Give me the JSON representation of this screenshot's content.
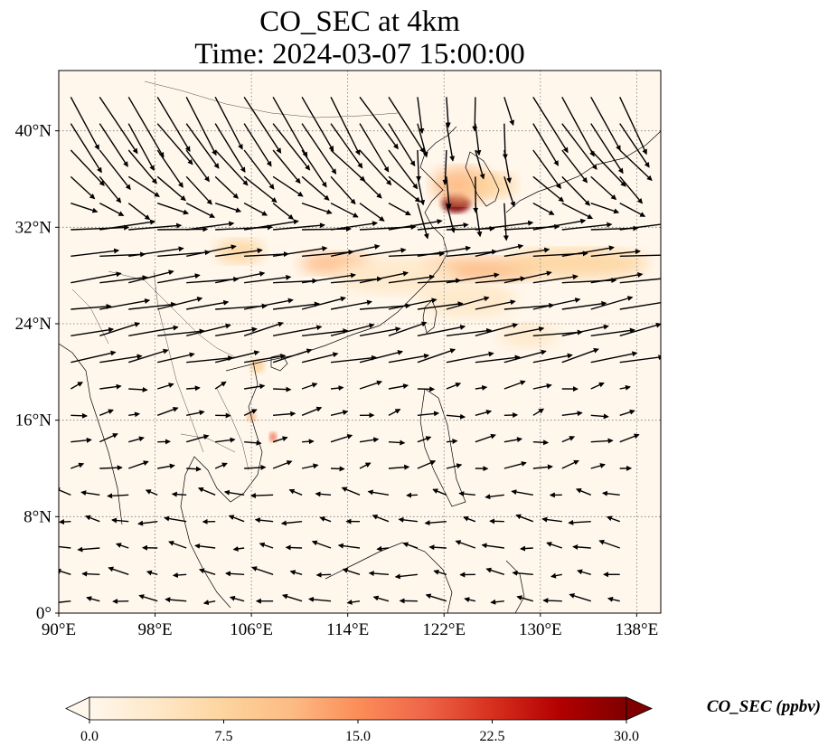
{
  "title": {
    "line1": "CO_SEC at 4km",
    "line2": "Time: 2024-03-07 15:00:00"
  },
  "axes": {
    "x_ticks": [
      {
        "value": 90,
        "label": "90°E"
      },
      {
        "value": 98,
        "label": "98°E"
      },
      {
        "value": 106,
        "label": "106°E"
      },
      {
        "value": 114,
        "label": "114°E"
      },
      {
        "value": 122,
        "label": "122°E"
      },
      {
        "value": 130,
        "label": "130°E"
      },
      {
        "value": 138,
        "label": "138°E"
      }
    ],
    "y_ticks": [
      {
        "value": 0,
        "label": "0°"
      },
      {
        "value": 8,
        "label": "8°N"
      },
      {
        "value": 16,
        "label": "16°N"
      },
      {
        "value": 24,
        "label": "24°N"
      },
      {
        "value": 32,
        "label": "32°N"
      },
      {
        "value": 40,
        "label": "40°N"
      }
    ],
    "lon_range": [
      90,
      140
    ],
    "lat_range": [
      0,
      45
    ],
    "gridlines": true
  },
  "colorbar": {
    "label": "CO_SEC (ppbv)",
    "min": 0,
    "max": 30,
    "colormap": "OrRd",
    "extend": "both",
    "ticks": [
      {
        "value": 0,
        "label": "0.0"
      },
      {
        "value": 7.5,
        "label": "7.5"
      },
      {
        "value": 15,
        "label": "15.0"
      },
      {
        "value": 22.5,
        "label": "22.5"
      },
      {
        "value": 30,
        "label": "30.0"
      }
    ],
    "colors": [
      "#fff7ec",
      "#fee8c8",
      "#fdd49e",
      "#fdbb84",
      "#fc8d59",
      "#ef6548",
      "#d7301f",
      "#b30000",
      "#7f0000"
    ]
  },
  "map": {
    "background_color": "#fff7ec",
    "plumes": [
      {
        "lon": 123,
        "lat": 34.0,
        "rx": 1.2,
        "ry": 0.8,
        "value": 30
      },
      {
        "lon": 123.5,
        "lat": 35.5,
        "rx": 2.5,
        "ry": 1.5,
        "value": 12
      },
      {
        "lon": 126,
        "lat": 35.5,
        "rx": 2.0,
        "ry": 1.0,
        "value": 6
      },
      {
        "lon": 113,
        "lat": 29.0,
        "rx": 3.0,
        "ry": 0.9,
        "value": 12
      },
      {
        "lon": 125,
        "lat": 28.5,
        "rx": 5.0,
        "ry": 1.0,
        "value": 12
      },
      {
        "lon": 133,
        "lat": 29.0,
        "rx": 6.0,
        "ry": 1.2,
        "value": 8
      },
      {
        "lon": 105,
        "lat": 30.0,
        "rx": 2.0,
        "ry": 1.0,
        "value": 6
      },
      {
        "lon": 118,
        "lat": 28.0,
        "rx": 5.0,
        "ry": 1.5,
        "value": 4
      },
      {
        "lon": 124,
        "lat": 26.0,
        "rx": 4.0,
        "ry": 1.5,
        "value": 5
      },
      {
        "lon": 106,
        "lat": 16.3,
        "rx": 0.4,
        "ry": 0.4,
        "value": 12
      },
      {
        "lon": 107.8,
        "lat": 14.6,
        "rx": 0.3,
        "ry": 0.4,
        "value": 20
      },
      {
        "lon": 106.5,
        "lat": 20.5,
        "rx": 0.6,
        "ry": 0.6,
        "value": 6
      },
      {
        "lon": 129,
        "lat": 23.0,
        "rx": 2.5,
        "ry": 1.0,
        "value": 3
      }
    ],
    "wind_field": "horizontal-westerly-with-northern-convergence"
  }
}
